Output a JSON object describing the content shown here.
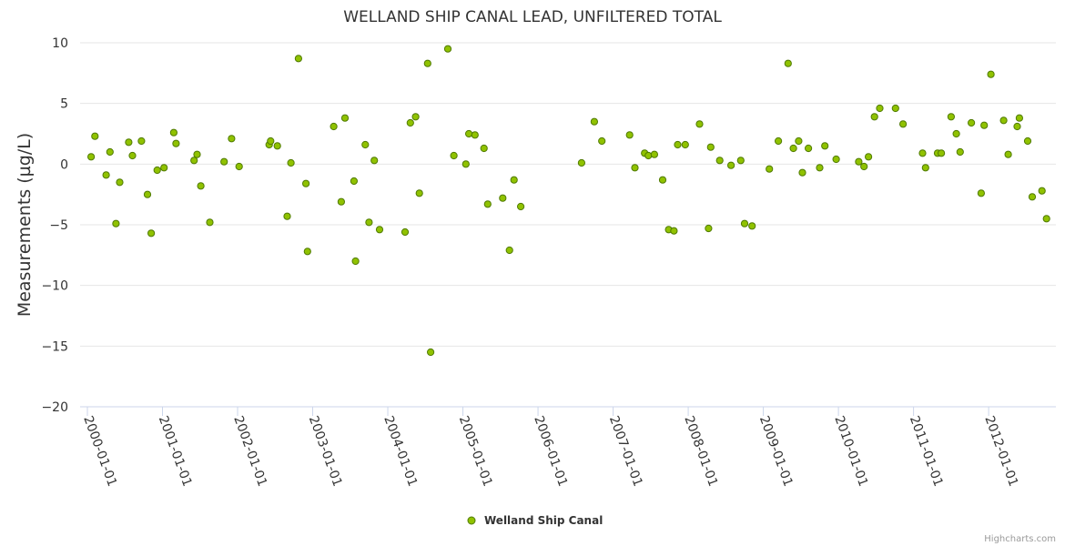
{
  "chart_data": {
    "type": "scatter",
    "title": "WELLAND SHIP CANAL LEAD, UNFILTERED TOTAL",
    "xlabel": "",
    "ylabel": "Measurements (µg/L)",
    "ylim": [
      -20,
      10
    ],
    "yticks": [
      10,
      5,
      0,
      -5,
      -10,
      -15,
      -20
    ],
    "xlim": [
      2000.0,
      2012.75
    ],
    "xticks": [
      {
        "value": 2000,
        "label": "2000-01-01"
      },
      {
        "value": 2001,
        "label": "2001-01-01"
      },
      {
        "value": 2002,
        "label": "2002-01-01"
      },
      {
        "value": 2003,
        "label": "2003-01-01"
      },
      {
        "value": 2004,
        "label": "2004-01-01"
      },
      {
        "value": 2005,
        "label": "2005-01-01"
      },
      {
        "value": 2006,
        "label": "2006-01-01"
      },
      {
        "value": 2007,
        "label": "2007-01-01"
      },
      {
        "value": 2008,
        "label": "2008-01-01"
      },
      {
        "value": 2009,
        "label": "2009-01-01"
      },
      {
        "value": 2010,
        "label": "2010-01-01"
      },
      {
        "value": 2011,
        "label": "2011-01-01"
      },
      {
        "value": 2012,
        "label": "2012-01-01"
      }
    ],
    "grid": true,
    "legend_position": "bottom-center",
    "marker_color": "#90c200",
    "marker_edge_color": "#4f7a00",
    "series": [
      {
        "name": "Welland Ship Canal",
        "points": [
          [
            2000.05,
            0.6
          ],
          [
            2000.1,
            2.3
          ],
          [
            2000.25,
            -0.9
          ],
          [
            2000.3,
            1.0
          ],
          [
            2000.38,
            -4.9
          ],
          [
            2000.43,
            -1.5
          ],
          [
            2000.55,
            1.8
          ],
          [
            2000.6,
            0.7
          ],
          [
            2000.72,
            1.9
          ],
          [
            2000.8,
            -2.5
          ],
          [
            2000.85,
            -5.7
          ],
          [
            2000.93,
            -0.5
          ],
          [
            2001.02,
            -0.3
          ],
          [
            2001.15,
            2.6
          ],
          [
            2001.18,
            1.7
          ],
          [
            2001.42,
            0.3
          ],
          [
            2001.46,
            0.8
          ],
          [
            2001.51,
            -1.8
          ],
          [
            2001.63,
            -4.8
          ],
          [
            2001.82,
            0.2
          ],
          [
            2001.92,
            2.1
          ],
          [
            2002.02,
            -0.2
          ],
          [
            2002.42,
            1.6
          ],
          [
            2002.44,
            1.9
          ],
          [
            2002.53,
            1.5
          ],
          [
            2002.66,
            -4.3
          ],
          [
            2002.71,
            0.1
          ],
          [
            2002.81,
            8.7
          ],
          [
            2002.91,
            -1.6
          ],
          [
            2002.93,
            -7.2
          ],
          [
            2003.28,
            3.1
          ],
          [
            2003.38,
            -3.1
          ],
          [
            2003.43,
            3.8
          ],
          [
            2003.55,
            -1.4
          ],
          [
            2003.57,
            -8.0
          ],
          [
            2003.7,
            1.6
          ],
          [
            2003.75,
            -4.8
          ],
          [
            2003.82,
            0.3
          ],
          [
            2003.89,
            -5.4
          ],
          [
            2004.23,
            -5.6
          ],
          [
            2004.3,
            3.4
          ],
          [
            2004.37,
            3.9
          ],
          [
            2004.42,
            -2.4
          ],
          [
            2004.53,
            8.3
          ],
          [
            2004.57,
            -15.5
          ],
          [
            2004.8,
            9.5
          ],
          [
            2004.88,
            0.7
          ],
          [
            2005.04,
            0.0
          ],
          [
            2005.08,
            2.5
          ],
          [
            2005.16,
            2.4
          ],
          [
            2005.28,
            1.3
          ],
          [
            2005.33,
            -3.3
          ],
          [
            2005.53,
            -2.8
          ],
          [
            2005.62,
            -7.1
          ],
          [
            2005.68,
            -1.3
          ],
          [
            2005.77,
            -3.5
          ],
          [
            2006.58,
            0.1
          ],
          [
            2006.75,
            3.5
          ],
          [
            2006.85,
            1.9
          ],
          [
            2007.22,
            2.4
          ],
          [
            2007.29,
            -0.3
          ],
          [
            2007.42,
            0.9
          ],
          [
            2007.47,
            0.7
          ],
          [
            2007.55,
            0.8
          ],
          [
            2007.66,
            -1.3
          ],
          [
            2007.74,
            -5.4
          ],
          [
            2007.81,
            -5.5
          ],
          [
            2007.86,
            1.6
          ],
          [
            2007.96,
            1.6
          ],
          [
            2008.15,
            3.3
          ],
          [
            2008.27,
            -5.3
          ],
          [
            2008.3,
            1.4
          ],
          [
            2008.42,
            0.3
          ],
          [
            2008.57,
            -0.1
          ],
          [
            2008.7,
            0.3
          ],
          [
            2008.75,
            -4.9
          ],
          [
            2008.85,
            -5.1
          ],
          [
            2009.08,
            -0.4
          ],
          [
            2009.2,
            1.9
          ],
          [
            2009.33,
            8.3
          ],
          [
            2009.4,
            1.3
          ],
          [
            2009.47,
            1.9
          ],
          [
            2009.52,
            -0.7
          ],
          [
            2009.6,
            1.3
          ],
          [
            2009.75,
            -0.3
          ],
          [
            2009.82,
            1.5
          ],
          [
            2009.97,
            0.4
          ],
          [
            2010.27,
            0.2
          ],
          [
            2010.34,
            -0.2
          ],
          [
            2010.4,
            0.6
          ],
          [
            2010.48,
            3.9
          ],
          [
            2010.55,
            4.6
          ],
          [
            2010.76,
            4.6
          ],
          [
            2010.86,
            3.3
          ],
          [
            2011.12,
            0.9
          ],
          [
            2011.16,
            -0.3
          ],
          [
            2011.32,
            0.9
          ],
          [
            2011.37,
            0.9
          ],
          [
            2011.5,
            3.9
          ],
          [
            2011.57,
            2.5
          ],
          [
            2011.62,
            1.0
          ],
          [
            2011.77,
            3.4
          ],
          [
            2011.9,
            -2.4
          ],
          [
            2011.94,
            3.2
          ],
          [
            2012.03,
            7.4
          ],
          [
            2012.2,
            3.6
          ],
          [
            2012.26,
            0.8
          ],
          [
            2012.38,
            3.1
          ],
          [
            2012.41,
            3.8
          ],
          [
            2012.52,
            1.9
          ],
          [
            2012.58,
            -2.7
          ],
          [
            2012.71,
            -2.2
          ],
          [
            2012.77,
            -4.5
          ]
        ]
      }
    ]
  },
  "credits": "Highcharts.com"
}
